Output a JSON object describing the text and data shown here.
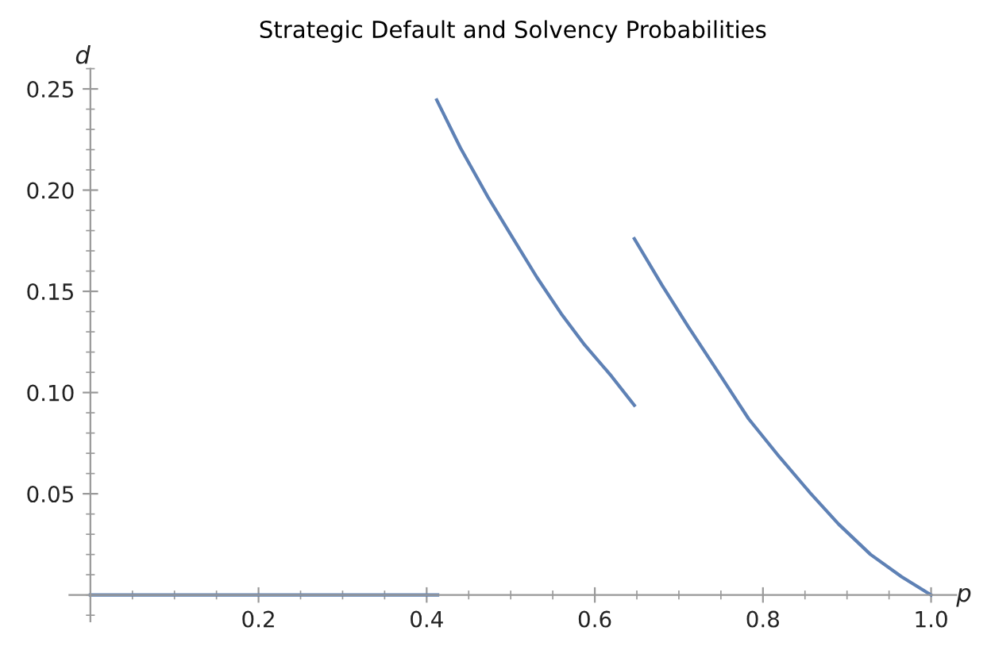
{
  "chart_data": {
    "type": "line",
    "title": "Strategic Default and Solvency Probabilities",
    "xlabel": "p",
    "ylabel": "d",
    "series": [
      {
        "color": "#5e81b5",
        "x": [
          0,
          0.2,
          0.413
        ],
        "values": [
          0,
          0,
          0
        ]
      },
      {
        "color": "#5e81b5",
        "x": [
          0.412,
          0.44,
          0.473,
          0.5,
          0.531,
          0.56,
          0.588,
          0.62,
          0.647
        ],
        "values": [
          0.2445,
          0.221,
          0.1965,
          0.178,
          0.157,
          0.139,
          0.1235,
          0.108,
          0.0937
        ]
      },
      {
        "color": "#5e81b5",
        "x": [
          0.647,
          0.68,
          0.711,
          0.75,
          0.783,
          0.82,
          0.856,
          0.89,
          0.928,
          0.965,
          1.0
        ],
        "values": [
          0.176,
          0.153,
          0.1326,
          0.108,
          0.087,
          0.068,
          0.0505,
          0.035,
          0.02,
          0.009,
          0
        ]
      }
    ],
    "xlim": [
      -0.025,
      1.03
    ],
    "ylim": [
      -0.013,
      0.26
    ],
    "xticks": [
      {
        "value": 0.2,
        "label": "0.2"
      },
      {
        "value": 0.4,
        "label": "0.4"
      },
      {
        "value": 0.6,
        "label": "0.6"
      },
      {
        "value": 0.8,
        "label": "0.8"
      },
      {
        "value": 1.0,
        "label": "1.0"
      }
    ],
    "yticks": [
      {
        "value": 0.05,
        "label": "0.05"
      },
      {
        "value": 0.1,
        "label": "0.10"
      },
      {
        "value": 0.15,
        "label": "0.15"
      },
      {
        "value": 0.2,
        "label": "0.20"
      },
      {
        "value": 0.25,
        "label": "0.25"
      }
    ],
    "grid": false,
    "marker": "none",
    "line_style": "solid"
  }
}
